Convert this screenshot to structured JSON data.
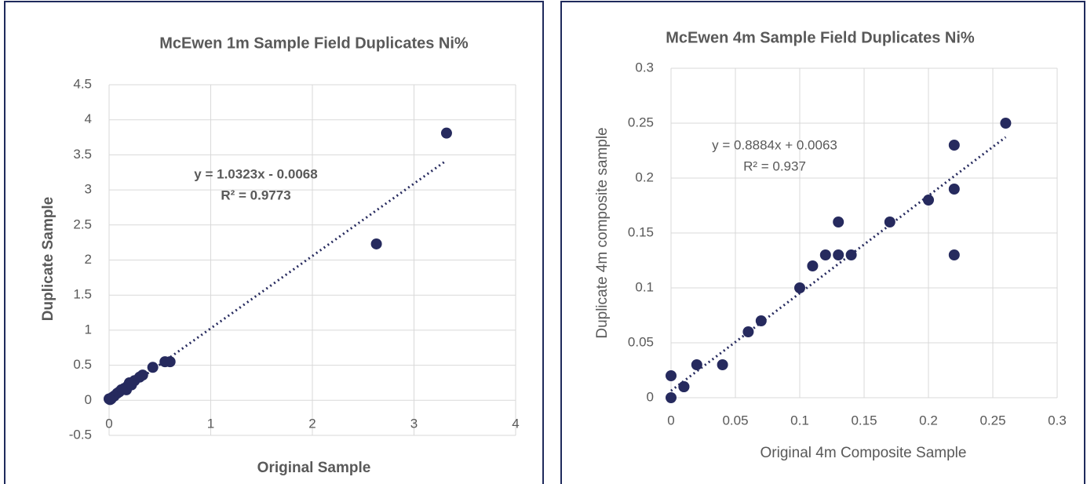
{
  "chart_data": [
    {
      "type": "scatter",
      "title": "McEwen 1m Sample Field Duplicates Ni%",
      "x_label": "Original Sample",
      "y_label": "Duplicate Sample",
      "color": "#262a5e",
      "grid": true,
      "x": [
        3.32,
        2.63,
        0.6,
        0.55,
        0.43,
        0.33,
        0.3,
        0.25,
        0.2,
        0.18,
        0.15,
        0.12,
        0.1,
        0.08,
        0.05,
        0.03,
        0.02,
        0.01,
        0,
        0.17,
        0.22
      ],
      "y": [
        3.81,
        2.23,
        0.55,
        0.55,
        0.47,
        0.36,
        0.33,
        0.28,
        0.25,
        0.2,
        0.17,
        0.15,
        0.12,
        0.1,
        0.06,
        0.04,
        0.02,
        0.01,
        0.02,
        0.15,
        0.22
      ],
      "xlim": [
        0,
        4
      ],
      "xticks": [
        0,
        1,
        2,
        3,
        4
      ],
      "ylim": [
        -0.5,
        4.5
      ],
      "yticks": [
        -0.5,
        0,
        0.5,
        1,
        1.5,
        2,
        2.5,
        3,
        3.5,
        4,
        4.5
      ],
      "trendline": {
        "slope": 1.0323,
        "intercept": -0.0068,
        "equation": "y = 1.0323x - 0.0068",
        "r2": "R² = 0.9773"
      }
    },
    {
      "type": "scatter",
      "title": "McEwen 4m Sample Field Duplicates Ni%",
      "x_label": "Original 4m Composite Sample",
      "y_label": "Duplicate 4m composite sample",
      "color": "#262a5e",
      "grid": true,
      "x": [
        0,
        0,
        0.01,
        0.01,
        0.02,
        0.04,
        0.06,
        0.07,
        0.1,
        0.11,
        0.12,
        0.13,
        0.13,
        0.14,
        0.17,
        0.2,
        0.22,
        0.22,
        0.22,
        0.26
      ],
      "y": [
        0.02,
        0,
        0.01,
        0.01,
        0.03,
        0.03,
        0.06,
        0.07,
        0.1,
        0.12,
        0.13,
        0.13,
        0.16,
        0.13,
        0.16,
        0.18,
        0.23,
        0.19,
        0.13,
        0.25
      ],
      "xlim": [
        0,
        0.3
      ],
      "xticks": [
        0,
        0.05,
        0.1,
        0.15,
        0.2,
        0.25,
        0.3
      ],
      "ylim": [
        0,
        0.3
      ],
      "yticks": [
        0,
        0.05,
        0.1,
        0.15,
        0.2,
        0.25,
        0.3
      ],
      "trendline": {
        "slope": 0.8884,
        "intercept": 0.0063,
        "equation": "y = 0.8884x + 0.0063",
        "r2": "R² = 0.937"
      }
    }
  ]
}
